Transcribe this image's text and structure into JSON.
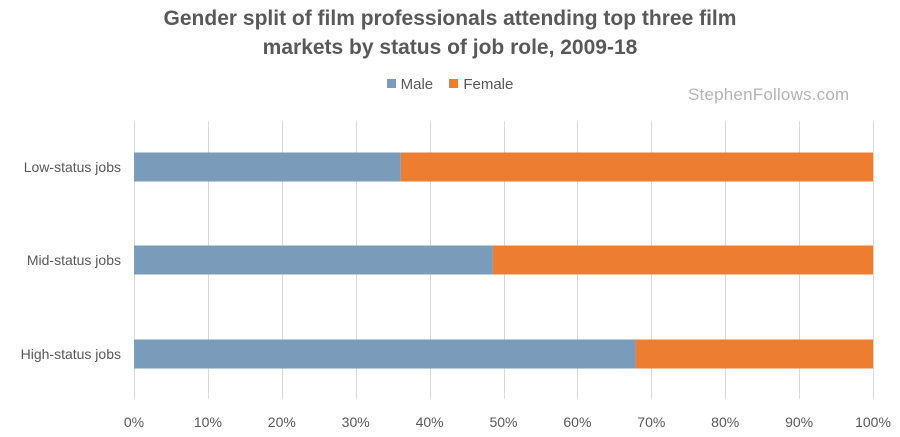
{
  "chart_data": {
    "type": "bar",
    "orientation": "horizontal",
    "stacked": true,
    "title_lines": [
      "Gender split of film professionals attending top three film",
      "markets by status of job role, 2009-18"
    ],
    "categories": [
      "Low-status jobs",
      "Mid-status jobs",
      "High-status jobs"
    ],
    "series": [
      {
        "name": "Male",
        "color": "#7a9cba",
        "values": [
          36.1,
          48.5,
          67.8
        ]
      },
      {
        "name": "Female",
        "color": "#ed7d31",
        "values": [
          63.9,
          51.5,
          32.2
        ]
      }
    ],
    "x_ticks": [
      "0%",
      "10%",
      "20%",
      "30%",
      "40%",
      "50%",
      "60%",
      "70%",
      "80%",
      "90%",
      "100%"
    ],
    "xlim": [
      0,
      100
    ],
    "grid": true,
    "legend_position": "top"
  },
  "watermark": "StephenFollows.com"
}
